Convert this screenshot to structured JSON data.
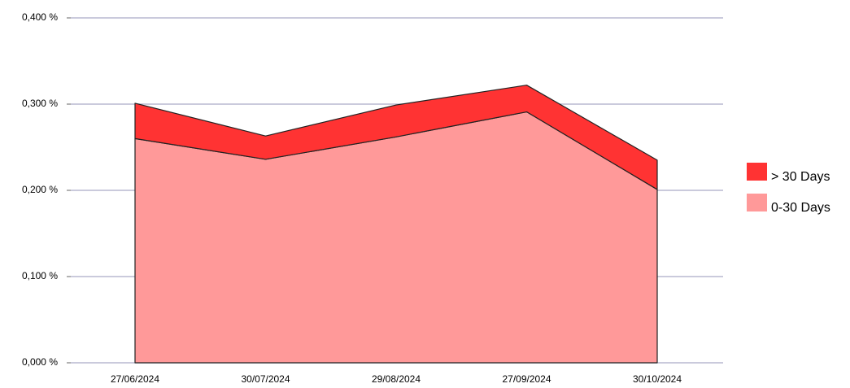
{
  "chart_data": {
    "type": "stacked-area",
    "categories": [
      "27/06/2024",
      "30/07/2024",
      "29/08/2024",
      "27/09/2024",
      "30/10/2024"
    ],
    "series": [
      {
        "name": "0-30 Days",
        "color": "#ff9999",
        "values": [
          0.26,
          0.236,
          0.262,
          0.291,
          0.201
        ]
      },
      {
        "name": "> 30 Days",
        "color": "#ff3333",
        "values": [
          0.041,
          0.027,
          0.037,
          0.031,
          0.034
        ]
      }
    ],
    "ylim": [
      0,
      0.4
    ],
    "yticks": [
      {
        "value": 0,
        "label": "0,000 %"
      },
      {
        "value": 0.1,
        "label": "0,100 %"
      },
      {
        "value": 0.2,
        "label": "0,200 %"
      },
      {
        "value": 0.3,
        "label": "0,300 %"
      },
      {
        "value": 0.4,
        "label": "0,400 %"
      }
    ],
    "grid": true
  }
}
